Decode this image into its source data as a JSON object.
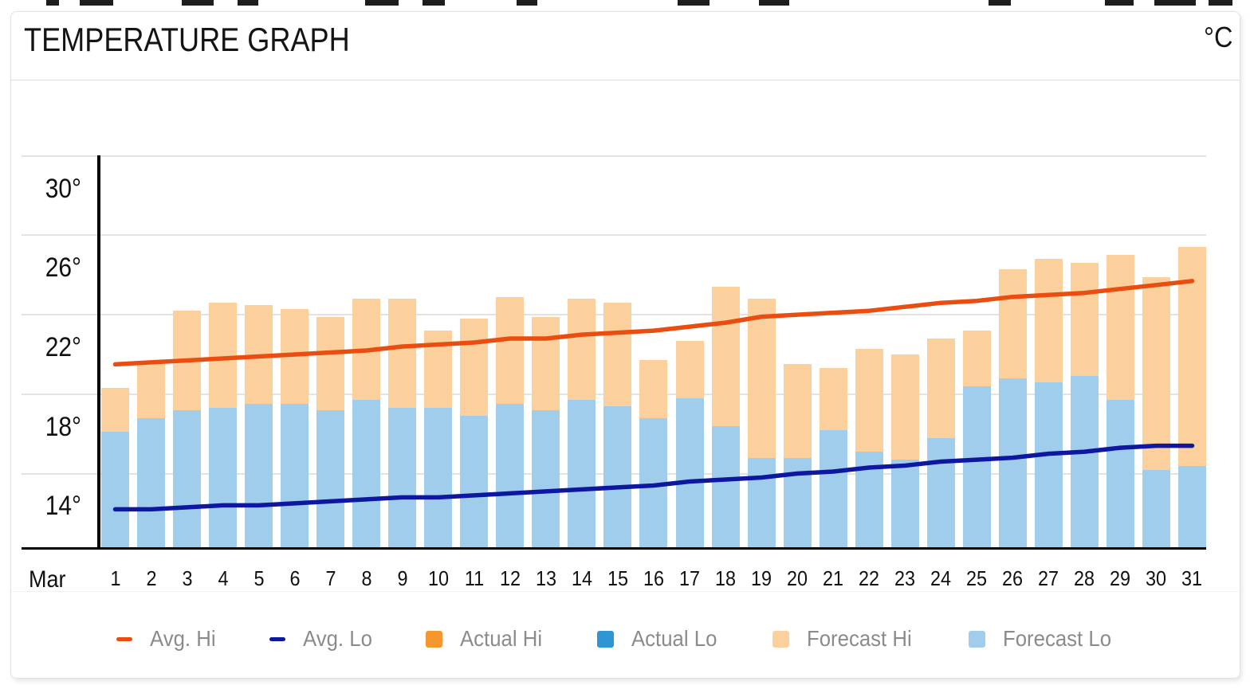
{
  "header": {
    "title": "TEMPERATURE GRAPH",
    "unit_label": "°C"
  },
  "x_axis": {
    "month_label": "Mar"
  },
  "legend": [
    {
      "label": "Avg. Hi",
      "swatch": "line-dash",
      "color": "#e94e10"
    },
    {
      "label": "Avg. Lo",
      "swatch": "line-dash",
      "color": "#0e17a0"
    },
    {
      "label": "Actual Hi",
      "swatch": "square",
      "color": "#f7962e"
    },
    {
      "label": "Actual Lo",
      "swatch": "square",
      "color": "#2e96d2"
    },
    {
      "label": "Forecast Hi",
      "swatch": "square",
      "color": "#fbd09c"
    },
    {
      "label": "Forecast Lo",
      "swatch": "square",
      "color": "#a0cdec"
    }
  ],
  "chart_data": {
    "type": "bar",
    "title": "TEMPERATURE GRAPH",
    "unit": "°C",
    "x_month": "Mar",
    "x": [
      1,
      2,
      3,
      4,
      5,
      6,
      7,
      8,
      9,
      10,
      11,
      12,
      13,
      14,
      15,
      16,
      17,
      18,
      19,
      20,
      21,
      22,
      23,
      24,
      25,
      26,
      27,
      28,
      29,
      30,
      31
    ],
    "ylim": [
      12,
      32
    ],
    "gridline_values": [
      32,
      28,
      24,
      20,
      16
    ],
    "yticks": [
      {
        "label": "30°",
        "value": 30
      },
      {
        "label": "26°",
        "value": 26
      },
      {
        "label": "22°",
        "value": 22
      },
      {
        "label": "18°",
        "value": 18
      },
      {
        "label": "14°",
        "value": 14
      }
    ],
    "grid": true,
    "legend_position": "bottom",
    "series": [
      {
        "name": "Avg. Hi",
        "type": "line",
        "color": "#e94e10",
        "values": [
          21.5,
          21.6,
          21.7,
          21.8,
          21.9,
          22.0,
          22.1,
          22.2,
          22.4,
          22.5,
          22.6,
          22.8,
          22.8,
          23.0,
          23.1,
          23.2,
          23.4,
          23.6,
          23.9,
          24.0,
          24.1,
          24.2,
          24.4,
          24.6,
          24.7,
          24.9,
          25.0,
          25.1,
          25.3,
          25.5,
          25.7
        ]
      },
      {
        "name": "Avg. Lo",
        "type": "line",
        "color": "#0e17a0",
        "values": [
          14.2,
          14.2,
          14.3,
          14.4,
          14.4,
          14.5,
          14.6,
          14.7,
          14.8,
          14.8,
          14.9,
          15.0,
          15.1,
          15.2,
          15.3,
          15.4,
          15.6,
          15.7,
          15.8,
          16.0,
          16.1,
          16.3,
          16.4,
          16.6,
          16.7,
          16.8,
          17.0,
          17.1,
          17.3,
          17.4,
          17.4
        ]
      },
      {
        "name": "Actual Hi",
        "type": "bar",
        "color": "#f7962e",
        "values": []
      },
      {
        "name": "Actual Lo",
        "type": "bar",
        "color": "#2e96d2",
        "values": []
      },
      {
        "name": "Forecast Hi",
        "type": "bar",
        "color": "#fbd09c",
        "values": [
          20.3,
          21.5,
          24.2,
          24.6,
          24.5,
          24.3,
          23.9,
          24.8,
          24.8,
          23.2,
          23.8,
          24.9,
          23.9,
          24.8,
          24.6,
          21.7,
          22.7,
          25.4,
          24.8,
          21.5,
          21.3,
          22.3,
          22.0,
          22.8,
          23.2,
          26.3,
          26.8,
          26.6,
          27.0,
          25.9,
          27.4
        ]
      },
      {
        "name": "Forecast Lo",
        "type": "bar",
        "color": "#a0cdec",
        "values": [
          18.1,
          18.8,
          19.2,
          19.3,
          19.5,
          19.5,
          19.2,
          19.7,
          19.3,
          19.3,
          18.9,
          19.5,
          19.2,
          19.7,
          19.4,
          18.8,
          19.8,
          18.4,
          16.8,
          16.8,
          18.2,
          17.1,
          16.7,
          17.8,
          20.4,
          20.8,
          20.6,
          20.9,
          19.7,
          16.2,
          16.4
        ]
      }
    ]
  }
}
